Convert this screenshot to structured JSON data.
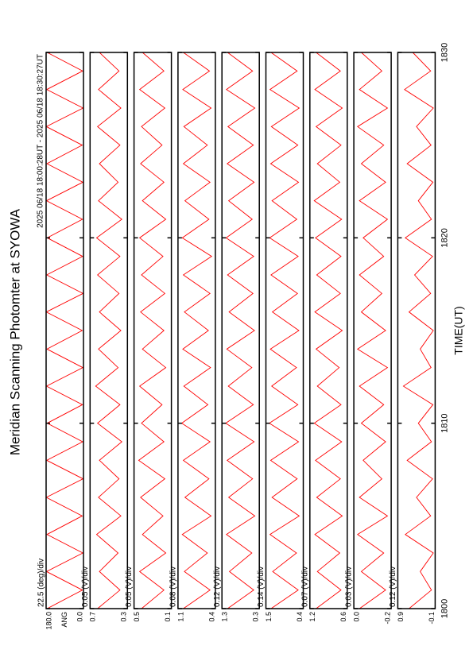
{
  "title": "Meridian Scanning Photomter at SYOWA",
  "time_range": "2025 06/18 18:00:28UT - 2025 06/18 18:30:27UT",
  "chart_data": {
    "type": "line",
    "xlabel": "TIME(UT)",
    "xlim": [
      1800,
      1830
    ],
    "xticks": [
      1800,
      1810,
      1820,
      1830
    ],
    "x": [
      1800,
      1801,
      1802,
      1803,
      1804,
      1805,
      1806,
      1807,
      1808,
      1809,
      1810,
      1811,
      1812,
      1813,
      1814,
      1815,
      1816,
      1817,
      1818,
      1819,
      1820,
      1821,
      1822,
      1823,
      1824,
      1825,
      1826,
      1827,
      1828,
      1829,
      1830
    ],
    "series": [
      {
        "name": "ANG",
        "scale_label": "22.5 (deg)/div",
        "color": "#ff0000",
        "ylim": [
          0,
          180
        ],
        "yticks": [
          {
            "value": 180,
            "label": "180.0"
          },
          {
            "value": 0,
            "label": "0.0"
          }
        ],
        "values": [
          175,
          5,
          178,
          3,
          176,
          6,
          179,
          2,
          177,
          4,
          175,
          5,
          178,
          3,
          176,
          6,
          179,
          2,
          177,
          4,
          175,
          5,
          178,
          3,
          176,
          6,
          179,
          2,
          177,
          4,
          175
        ]
      },
      {
        "scale_label": "0.05 (V)/div",
        "color": "#ff0000",
        "ylim": [
          0.3,
          0.7
        ],
        "yticks": [
          0.7,
          0.3
        ],
        "values": [
          0.62,
          0.38,
          0.6,
          0.4,
          0.63,
          0.37,
          0.61,
          0.39,
          0.6,
          0.36,
          0.62,
          0.38,
          0.64,
          0.4,
          0.61,
          0.37,
          0.6,
          0.39,
          0.62,
          0.38,
          0.63,
          0.36,
          0.61,
          0.4,
          0.6,
          0.38,
          0.62,
          0.37,
          0.61,
          0.39,
          0.6
        ]
      },
      {
        "scale_label": "0.05 (V)/div",
        "color": "#ff0000",
        "ylim": [
          0.1,
          0.5
        ],
        "yticks": [
          0.5,
          0.1
        ],
        "values": [
          0.42,
          0.18,
          0.44,
          0.16,
          0.41,
          0.19,
          0.43,
          0.17,
          0.45,
          0.18,
          0.42,
          0.2,
          0.44,
          0.16,
          0.41,
          0.18,
          0.43,
          0.17,
          0.42,
          0.19,
          0.44,
          0.16,
          0.41,
          0.18,
          0.43,
          0.2,
          0.42,
          0.17,
          0.44,
          0.18,
          0.41
        ]
      },
      {
        "scale_label": "0.08 (V)/div",
        "color": "#ff0000",
        "ylim": [
          0.4,
          1.1
        ],
        "yticks": [
          1.1,
          0.4
        ],
        "values": [
          1.0,
          0.5,
          0.98,
          0.55,
          1.02,
          0.48,
          0.97,
          0.52,
          1.0,
          0.5,
          1.03,
          0.54,
          0.99,
          0.49,
          1.01,
          0.53,
          0.98,
          0.5,
          1.0,
          0.47,
          1.02,
          0.52,
          0.97,
          0.5,
          1.0,
          0.55,
          0.99,
          0.48,
          1.01,
          0.51,
          1.0
        ]
      },
      {
        "scale_label": "0.12 (V)/div",
        "color": "#ff0000",
        "ylim": [
          0.3,
          1.3
        ],
        "yticks": [
          1.3,
          0.3
        ],
        "values": [
          1.15,
          0.45,
          1.1,
          0.5,
          1.18,
          0.42,
          1.12,
          0.48,
          1.16,
          0.44,
          1.2,
          0.46,
          1.13,
          0.5,
          1.17,
          0.43,
          1.11,
          0.47,
          1.15,
          0.45,
          1.19,
          0.49,
          1.12,
          0.44,
          1.16,
          0.46,
          1.14,
          0.42,
          1.18,
          0.48,
          1.15
        ]
      },
      {
        "scale_label": "0.14 (V)/div",
        "color": "#ff0000",
        "ylim": [
          0.4,
          1.5
        ],
        "yticks": [
          1.5,
          0.4
        ],
        "values": [
          1.35,
          0.55,
          1.3,
          0.6,
          1.38,
          0.52,
          1.32,
          0.58,
          1.36,
          0.54,
          1.4,
          0.56,
          1.33,
          0.6,
          1.37,
          0.53,
          1.31,
          0.57,
          1.35,
          0.55,
          1.39,
          0.59,
          1.32,
          0.54,
          1.36,
          0.56,
          1.34,
          0.52,
          1.38,
          0.58,
          1.35
        ]
      },
      {
        "scale_label": "0.07 (V)/div",
        "color": "#ff0000",
        "ylim": [
          0.6,
          1.2
        ],
        "yticks": [
          1.2,
          0.6
        ],
        "values": [
          1.1,
          0.7,
          1.08,
          0.72,
          1.12,
          0.68,
          1.09,
          0.71,
          1.11,
          0.69,
          1.13,
          0.7,
          1.08,
          0.73,
          1.1,
          0.68,
          1.12,
          0.71,
          1.09,
          0.7,
          1.11,
          0.69,
          1.13,
          0.72,
          1.08,
          0.7,
          1.1,
          0.68,
          1.12,
          0.71,
          1.1
        ]
      },
      {
        "scale_label": "0.03 (V)/div",
        "color": "#ff0000",
        "ylim": [
          -0.2,
          0
        ],
        "yticks": [
          {
            "value": 0,
            "label": "0.0"
          },
          -0.2
        ],
        "values": [
          -0.03,
          -0.17,
          -0.04,
          -0.16,
          -0.02,
          -0.18,
          -0.03,
          -0.15,
          -0.05,
          -0.17,
          -0.04,
          -0.16,
          -0.03,
          -0.18,
          -0.02,
          -0.17,
          -0.04,
          -0.15,
          -0.03,
          -0.16,
          -0.05,
          -0.18,
          -0.03,
          -0.17,
          -0.04,
          -0.16,
          -0.02,
          -0.18,
          -0.03,
          -0.15,
          -0.04
        ]
      },
      {
        "scale_label": "0.12 (V)/div",
        "color": "#ff0000",
        "ylim": [
          -0.1,
          0.9
        ],
        "yticks": [
          0.9,
          -0.1
        ],
        "values": [
          0.6,
          0.0,
          0.3,
          -0.05,
          0.7,
          0.02,
          0.4,
          -0.03,
          0.65,
          0.0,
          0.35,
          -0.04,
          0.75,
          0.01,
          0.3,
          -0.05,
          0.6,
          0.02,
          0.45,
          -0.03,
          0.7,
          0.0,
          0.35,
          -0.04,
          0.65,
          0.01,
          0.4,
          -0.05,
          0.72,
          0.02,
          0.5
        ]
      }
    ]
  }
}
